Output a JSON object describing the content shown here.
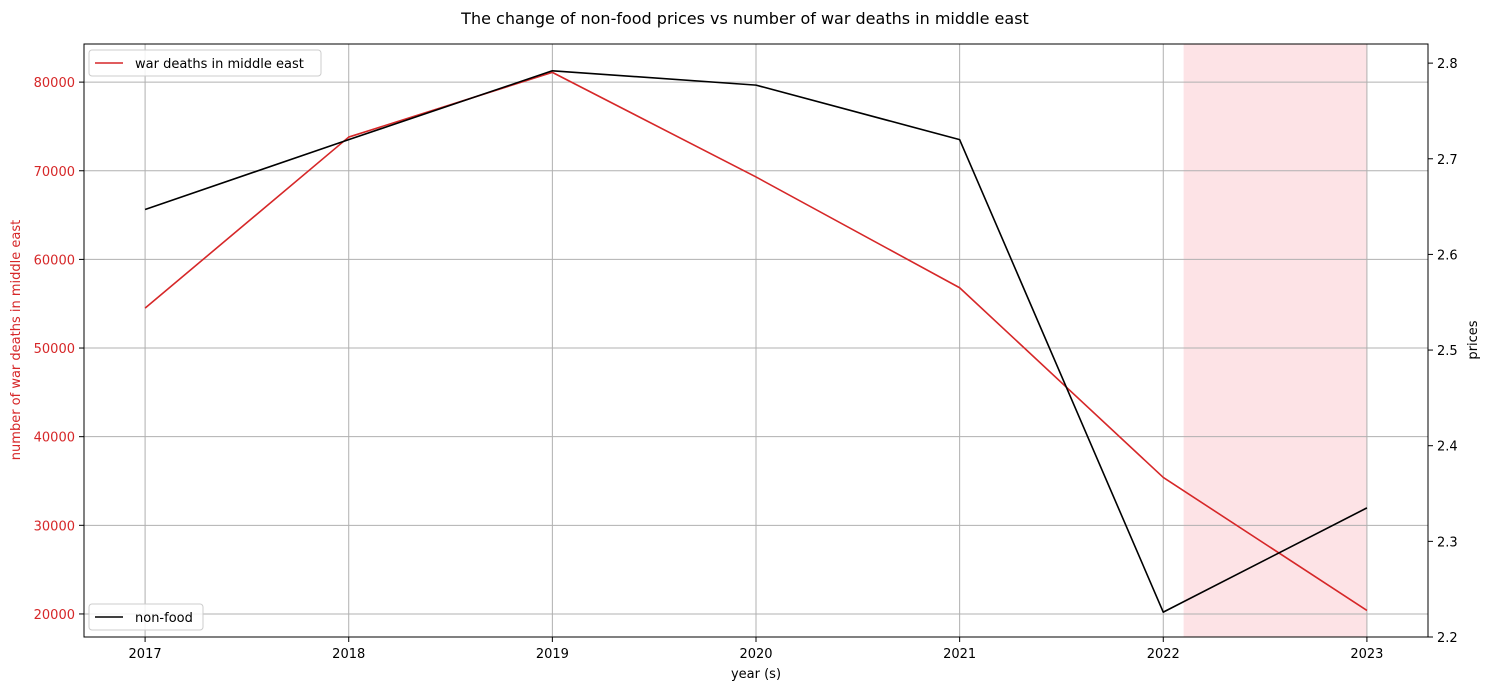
{
  "chart_data": {
    "type": "line",
    "title": "The change of non-food prices vs number of war deaths in middle east",
    "xlabel": "year (s)",
    "ylabel_left": "number of war deaths in middle east",
    "ylabel_right": "prices",
    "x": [
      2017,
      2018,
      2019,
      2020,
      2021,
      2022,
      2023
    ],
    "xlim": [
      2016.7,
      2023.3
    ],
    "ylim_left": [
      17400,
      84300
    ],
    "ylim_right": [
      2.2,
      2.82
    ],
    "yticks_left": [
      "20000",
      "30000",
      "40000",
      "50000",
      "60000",
      "70000",
      "80000"
    ],
    "yticks_right": [
      "2.2",
      "2.3",
      "2.4",
      "2.5",
      "2.6",
      "2.7",
      "2.8"
    ],
    "xticks": [
      "2017",
      "2018",
      "2019",
      "2020",
      "2021",
      "2022",
      "2023"
    ],
    "grid": true,
    "shaded_span": {
      "x_start": 2022.1,
      "x_end": 2023.0,
      "color": "#fde3e6"
    },
    "series": [
      {
        "name": "war deaths in middle east",
        "axis": "left",
        "color": "#d62728",
        "values": [
          54500,
          73800,
          81100,
          69300,
          56800,
          35400,
          20400
        ],
        "legend_position": "upper-left"
      },
      {
        "name": "non-food",
        "axis": "right",
        "color": "#000000",
        "values": [
          2.647,
          2.72,
          2.792,
          2.777,
          2.72,
          2.226,
          2.335
        ],
        "legend_position": "lower-left"
      }
    ]
  }
}
